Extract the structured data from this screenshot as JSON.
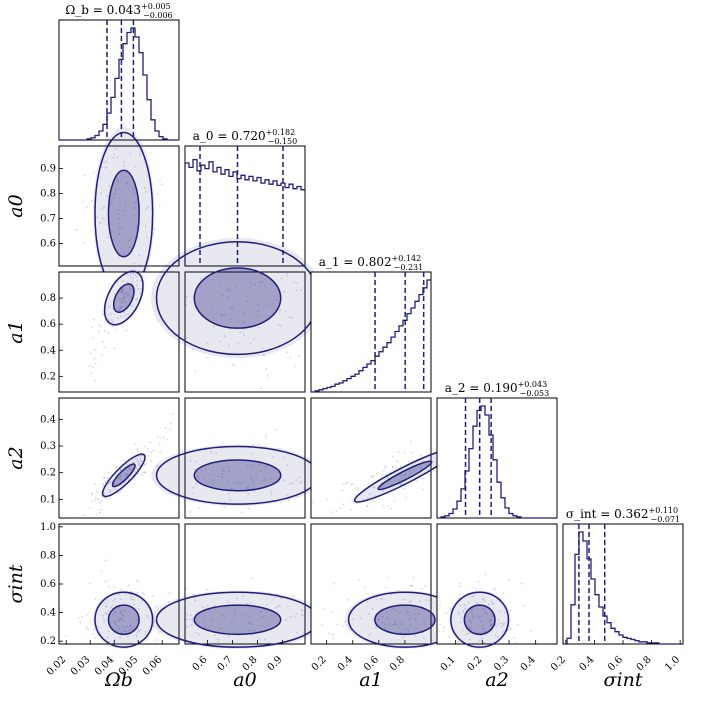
{
  "chart_data": {
    "type": "corner",
    "parameters": [
      {
        "key": "ob",
        "label": "Ω_b",
        "ticks": [
          "0.02",
          "0.03",
          "0.04",
          "0.05",
          "0.06"
        ],
        "range": [
          0.017,
          0.067
        ],
        "title": {
          "main": "Ω_b = 0.043",
          "plus": "+0.005",
          "minus": "−0.006"
        },
        "median": 0.043,
        "lo": 0.037,
        "hi": 0.048,
        "hist": [
          0,
          0,
          0,
          0,
          0,
          0,
          0,
          0.01,
          0.02,
          0.04,
          0.08,
          0.14,
          0.24,
          0.38,
          0.55,
          0.72,
          0.86,
          0.96,
          1.0,
          0.92,
          0.78,
          0.58,
          0.36,
          0.18,
          0.08,
          0.03,
          0.01,
          0,
          0,
          0
        ]
      },
      {
        "key": "a0",
        "label": "a_0",
        "ticks": [
          "0.6",
          "0.7",
          "0.8",
          "0.9"
        ],
        "range": [
          0.51,
          0.99
        ],
        "title": {
          "main": "a_0 = 0.720",
          "plus": "+0.182",
          "minus": "−0.150"
        },
        "median": 0.72,
        "lo": 0.57,
        "hi": 0.902,
        "hist": [
          0.92,
          0.88,
          0.95,
          0.85,
          0.9,
          0.87,
          0.93,
          0.84,
          0.88,
          0.82,
          0.86,
          0.8,
          0.84,
          0.78,
          0.81,
          0.77,
          0.8,
          0.76,
          0.79,
          0.74,
          0.77,
          0.73,
          0.76,
          0.72,
          0.74,
          0.7,
          0.73,
          0.69,
          0.71,
          0.68
        ]
      },
      {
        "key": "a1",
        "label": "a_1",
        "ticks": [
          "0.2",
          "0.4",
          "0.6",
          "0.8"
        ],
        "range": [
          0.08,
          1.0
        ],
        "title": {
          "main": "a_1 = 0.802",
          "plus": "+0.142",
          "minus": "−0.231"
        },
        "median": 0.802,
        "lo": 0.571,
        "hi": 0.944,
        "hist": [
          0,
          0.01,
          0.02,
          0.03,
          0.04,
          0.05,
          0.07,
          0.08,
          0.1,
          0.12,
          0.14,
          0.16,
          0.19,
          0.22,
          0.25,
          0.28,
          0.32,
          0.36,
          0.4,
          0.44,
          0.49,
          0.54,
          0.59,
          0.64,
          0.7,
          0.75,
          0.81,
          0.87,
          0.93,
          1.0
        ]
      },
      {
        "key": "a2",
        "label": "a_2",
        "ticks": [
          "0.1",
          "0.2",
          "0.3",
          "0.4"
        ],
        "range": [
          0.03,
          0.48
        ],
        "title": {
          "main": "a_2 = 0.190",
          "plus": "+0.043",
          "minus": "−0.053"
        },
        "median": 0.19,
        "lo": 0.137,
        "hi": 0.233,
        "hist": [
          0,
          0.01,
          0.02,
          0.04,
          0.08,
          0.15,
          0.26,
          0.42,
          0.62,
          0.82,
          0.96,
          1.0,
          0.92,
          0.74,
          0.52,
          0.32,
          0.18,
          0.09,
          0.04,
          0.02,
          0.01,
          0,
          0,
          0,
          0,
          0,
          0,
          0,
          0,
          0
        ]
      },
      {
        "key": "si",
        "label": "σ_int",
        "ticks": [
          "0.2",
          "0.4",
          "0.6",
          "0.8",
          "1.0"
        ],
        "range": [
          0.18,
          1.02
        ],
        "title": {
          "main": "σ_int = 0.362",
          "plus": "+0.110",
          "minus": "−0.071"
        },
        "median": 0.362,
        "lo": 0.291,
        "hi": 0.472,
        "hist": [
          0,
          0.05,
          0.35,
          0.8,
          1.0,
          0.92,
          0.76,
          0.58,
          0.44,
          0.33,
          0.25,
          0.19,
          0.14,
          0.11,
          0.08,
          0.06,
          0.05,
          0.04,
          0.03,
          0.02,
          0.02,
          0.01,
          0.01,
          0.01,
          0,
          0,
          0,
          0,
          0,
          0
        ]
      }
    ],
    "contour_levels": 2,
    "diagonal": "1D marginal histograms with 16/50/84 percent quantile dashed lines",
    "off_diagonal": "2D density contours with scattered samples"
  }
}
